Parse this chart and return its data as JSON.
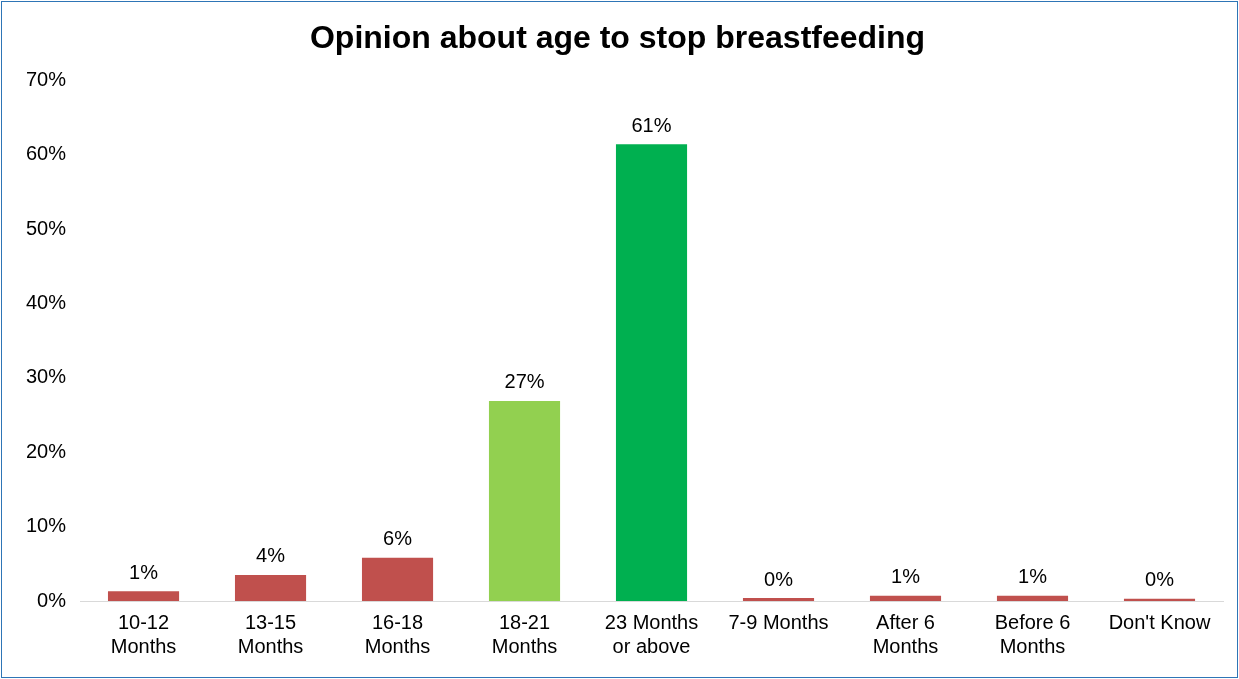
{
  "chart_data": {
    "type": "bar",
    "title": "Opinion about age to stop breastfeeding",
    "categories": [
      "10-12 Months",
      "13-15 Months",
      "16-18 Months",
      "18-21 Months",
      "23 Months or above",
      "7-9 Months",
      "After 6 Months",
      "Before 6 Months",
      "Don't Know"
    ],
    "values": [
      1.3,
      3.5,
      5.8,
      26.9,
      61.4,
      0.4,
      0.7,
      0.7,
      0.3
    ],
    "value_labels": [
      "1%",
      "4%",
      "6%",
      "27%",
      "61%",
      "0%",
      "1%",
      "1%",
      "0%"
    ],
    "colors": [
      "#c0504d",
      "#c0504d",
      "#c0504d",
      "#92d050",
      "#00b050",
      "#c0504d",
      "#c0504d",
      "#c0504d",
      "#c0504d"
    ],
    "ylim": [
      0,
      70
    ],
    "yticks": [
      {
        "value": 0,
        "label": "0%"
      },
      {
        "value": 10,
        "label": "10%"
      },
      {
        "value": 20,
        "label": "20%"
      },
      {
        "value": 30,
        "label": "30%"
      },
      {
        "value": 40,
        "label": "40%"
      },
      {
        "value": 50,
        "label": "50%"
      },
      {
        "value": 60,
        "label": "60%"
      },
      {
        "value": 70,
        "label": "70%"
      }
    ],
    "grid": false,
    "legend": false
  }
}
